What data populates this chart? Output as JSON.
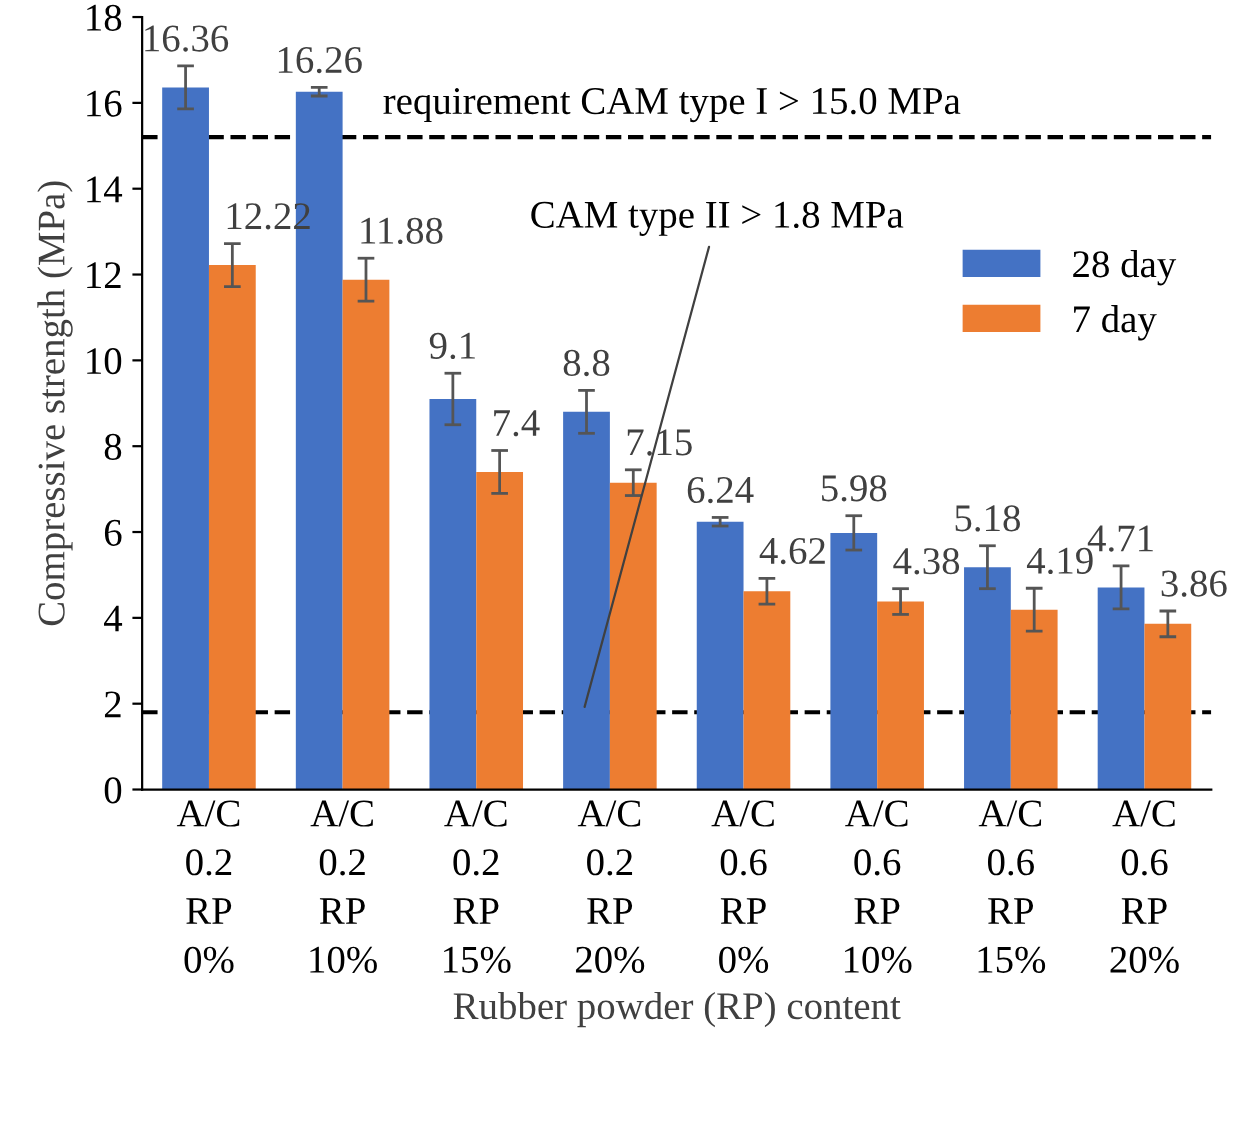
{
  "chart_data": {
    "type": "bar",
    "xlabel": "Rubber powder (RP) content",
    "ylabel": "Compressive strength (MPa)",
    "categories": [
      "A/C\n0.2\nRP\n0%",
      "A/C\n0.2\nRP\n10%",
      "A/C\n0.2\nRP\n15%",
      "A/C\n0.2\nRP\n20%",
      "A/C\n0.6\nRP\n0%",
      "A/C\n0.6\nRP\n10%",
      "A/C\n0.6\nRP\n15%",
      "A/C\n0.6\nRP\n20%"
    ],
    "series": [
      {
        "name": "28 day",
        "color": "#4472c4",
        "values": [
          16.36,
          16.26,
          9.1,
          8.8,
          6.24,
          5.98,
          5.18,
          4.71
        ],
        "errors": [
          0.5,
          0.1,
          0.6,
          0.5,
          0.1,
          0.4,
          0.5,
          0.5
        ]
      },
      {
        "name": "7 day",
        "color": "#ed7d31",
        "values": [
          12.22,
          11.88,
          7.4,
          7.15,
          4.62,
          4.38,
          4.19,
          3.86
        ],
        "errors": [
          0.5,
          0.5,
          0.5,
          0.3,
          0.3,
          0.3,
          0.5,
          0.3
        ]
      }
    ],
    "data_labels": true,
    "ylim": [
      0,
      18
    ],
    "yticks": [
      0,
      2,
      4,
      6,
      8,
      10,
      12,
      14,
      16,
      18
    ],
    "ref_lines": [
      {
        "axis": "y",
        "value": 15.2,
        "label": "requirement CAM type I > 15.0 MPa",
        "color": "#000000",
        "line_style": "dashed"
      },
      {
        "axis": "y",
        "value": 1.8,
        "label": "CAM type II > 1.8 MPa",
        "color": "#000000",
        "line_style": "dashed"
      }
    ],
    "grid": false,
    "legend": "right"
  }
}
